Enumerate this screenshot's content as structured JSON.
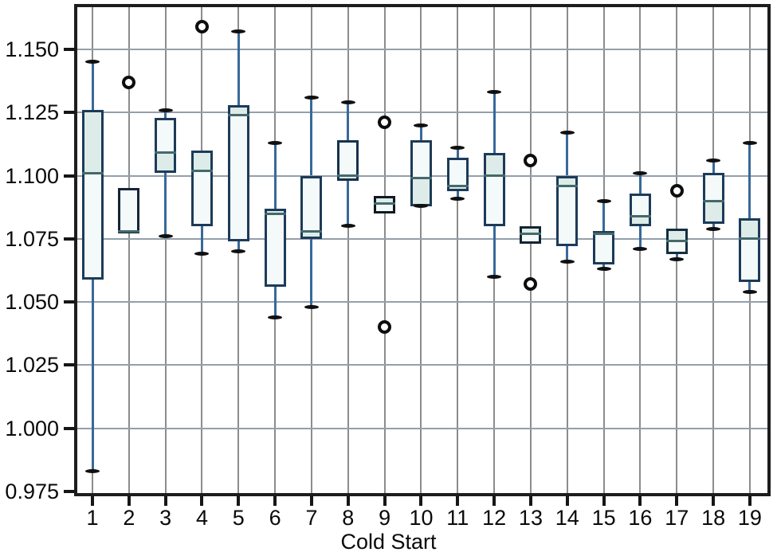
{
  "chart_data": {
    "type": "boxplot",
    "title": "",
    "xlabel": "Cold Start",
    "ylabel": "",
    "grid": true,
    "legend": "none",
    "ylim": [
      0.9744,
      1.1657
    ],
    "y_ticks": [
      0.975,
      1.0,
      1.025,
      1.05,
      1.075,
      1.1,
      1.125,
      1.15
    ],
    "y_tick_labels": [
      "0.975",
      "1.000",
      "1.025",
      "1.050",
      "1.075",
      "1.100",
      "1.125",
      "1.150"
    ],
    "categories": [
      "1",
      "2",
      "3",
      "4",
      "5",
      "6",
      "7",
      "8",
      "9",
      "10",
      "11",
      "12",
      "13",
      "14",
      "15",
      "16",
      "17",
      "18",
      "19"
    ],
    "boxes": [
      {
        "category": "1",
        "whislo": 0.983,
        "q1": 1.059,
        "med": 1.101,
        "q3": 1.126,
        "whishi": 1.145,
        "fliers": [],
        "cap_lo": true,
        "cap_hi": true,
        "edge": "#1d3b58"
      },
      {
        "category": "2",
        "whislo": 1.077,
        "q1": 1.077,
        "med": 1.078,
        "q3": 1.095,
        "whishi": 1.095,
        "fliers": [
          1.137
        ],
        "cap_lo": false,
        "cap_hi": false,
        "edge": "#142536"
      },
      {
        "category": "3",
        "whislo": 1.076,
        "q1": 1.101,
        "med": 1.109,
        "q3": 1.123,
        "whishi": 1.126,
        "fliers": [],
        "cap_lo": true,
        "cap_hi": true,
        "edge": "#1d3b58"
      },
      {
        "category": "4",
        "whislo": 1.069,
        "q1": 1.08,
        "med": 1.102,
        "q3": 1.11,
        "whishi": 1.11,
        "fliers": [
          1.159
        ],
        "cap_lo": true,
        "cap_hi": false,
        "edge": "#1d3b58"
      },
      {
        "category": "5",
        "whislo": 1.07,
        "q1": 1.074,
        "med": 1.124,
        "q3": 1.128,
        "whishi": 1.157,
        "fliers": [],
        "cap_lo": true,
        "cap_hi": true,
        "edge": "#1d3b58"
      },
      {
        "category": "6",
        "whislo": 1.044,
        "q1": 1.056,
        "med": 1.085,
        "q3": 1.087,
        "whishi": 1.113,
        "fliers": [],
        "cap_lo": true,
        "cap_hi": true,
        "edge": "#1d3b58"
      },
      {
        "category": "7",
        "whislo": 1.048,
        "q1": 1.075,
        "med": 1.078,
        "q3": 1.1,
        "whishi": 1.131,
        "fliers": [],
        "cap_lo": true,
        "cap_hi": true,
        "edge": "#1d3b58"
      },
      {
        "category": "8",
        "whislo": 1.08,
        "q1": 1.098,
        "med": 1.1,
        "q3": 1.114,
        "whishi": 1.129,
        "fliers": [],
        "cap_lo": true,
        "cap_hi": true,
        "edge": "#16324e"
      },
      {
        "category": "9",
        "whislo": 1.085,
        "q1": 1.085,
        "med": 1.089,
        "q3": 1.092,
        "whishi": 1.092,
        "fliers": [
          1.121,
          1.04
        ],
        "cap_lo": false,
        "cap_hi": false,
        "edge": "#0f1a24"
      },
      {
        "category": "10",
        "whislo": 1.088,
        "q1": 1.088,
        "med": 1.099,
        "q3": 1.114,
        "whishi": 1.12,
        "fliers": [],
        "cap_lo": true,
        "cap_hi": true,
        "edge": "#1d3b58"
      },
      {
        "category": "11",
        "whislo": 1.091,
        "q1": 1.094,
        "med": 1.096,
        "q3": 1.107,
        "whishi": 1.111,
        "fliers": [],
        "cap_lo": true,
        "cap_hi": true,
        "edge": "#1d3b58"
      },
      {
        "category": "12",
        "whislo": 1.06,
        "q1": 1.08,
        "med": 1.1,
        "q3": 1.109,
        "whishi": 1.133,
        "fliers": [],
        "cap_lo": true,
        "cap_hi": true,
        "edge": "#1d3b58"
      },
      {
        "category": "13",
        "whislo": 1.073,
        "q1": 1.073,
        "med": 1.077,
        "q3": 1.08,
        "whishi": 1.08,
        "fliers": [
          1.106,
          1.057
        ],
        "cap_lo": false,
        "cap_hi": false,
        "edge": "#132434"
      },
      {
        "category": "14",
        "whislo": 1.066,
        "q1": 1.072,
        "med": 1.096,
        "q3": 1.1,
        "whishi": 1.117,
        "fliers": [],
        "cap_lo": true,
        "cap_hi": true,
        "edge": "#1d3b58"
      },
      {
        "category": "15",
        "whislo": 1.063,
        "q1": 1.065,
        "med": 1.077,
        "q3": 1.078,
        "whishi": 1.09,
        "fliers": [],
        "cap_lo": true,
        "cap_hi": true,
        "edge": "#1d3b58"
      },
      {
        "category": "16",
        "whislo": 1.071,
        "q1": 1.08,
        "med": 1.084,
        "q3": 1.093,
        "whishi": 1.101,
        "fliers": [],
        "cap_lo": true,
        "cap_hi": true,
        "edge": "#1d3b58"
      },
      {
        "category": "17",
        "whislo": 1.067,
        "q1": 1.069,
        "med": 1.074,
        "q3": 1.079,
        "whishi": 1.079,
        "fliers": [
          1.094
        ],
        "cap_lo": true,
        "cap_hi": false,
        "edge": "#142f3f"
      },
      {
        "category": "18",
        "whislo": 1.079,
        "q1": 1.081,
        "med": 1.09,
        "q3": 1.101,
        "whishi": 1.106,
        "fliers": [],
        "cap_lo": true,
        "cap_hi": true,
        "edge": "#1d3b58"
      },
      {
        "category": "19",
        "whislo": 1.054,
        "q1": 1.058,
        "med": 1.075,
        "q3": 1.083,
        "whishi": 1.113,
        "fliers": [],
        "cap_lo": true,
        "cap_hi": true,
        "edge": "#1d3b58"
      }
    ]
  },
  "style": {
    "background": "#ffffff",
    "frame_color": "#1f1c1c",
    "vgrid_color": "#8c8c8c",
    "hgrid_color": "#939fab",
    "box_fill": "#f4f9fa",
    "box_band_fill": "#ddece8",
    "median_color": "#44696b",
    "whisker_color": "#38699b",
    "cap_color": "#101010",
    "flier_color": "#0d0d0d",
    "label_color": "#0a0a0a"
  }
}
